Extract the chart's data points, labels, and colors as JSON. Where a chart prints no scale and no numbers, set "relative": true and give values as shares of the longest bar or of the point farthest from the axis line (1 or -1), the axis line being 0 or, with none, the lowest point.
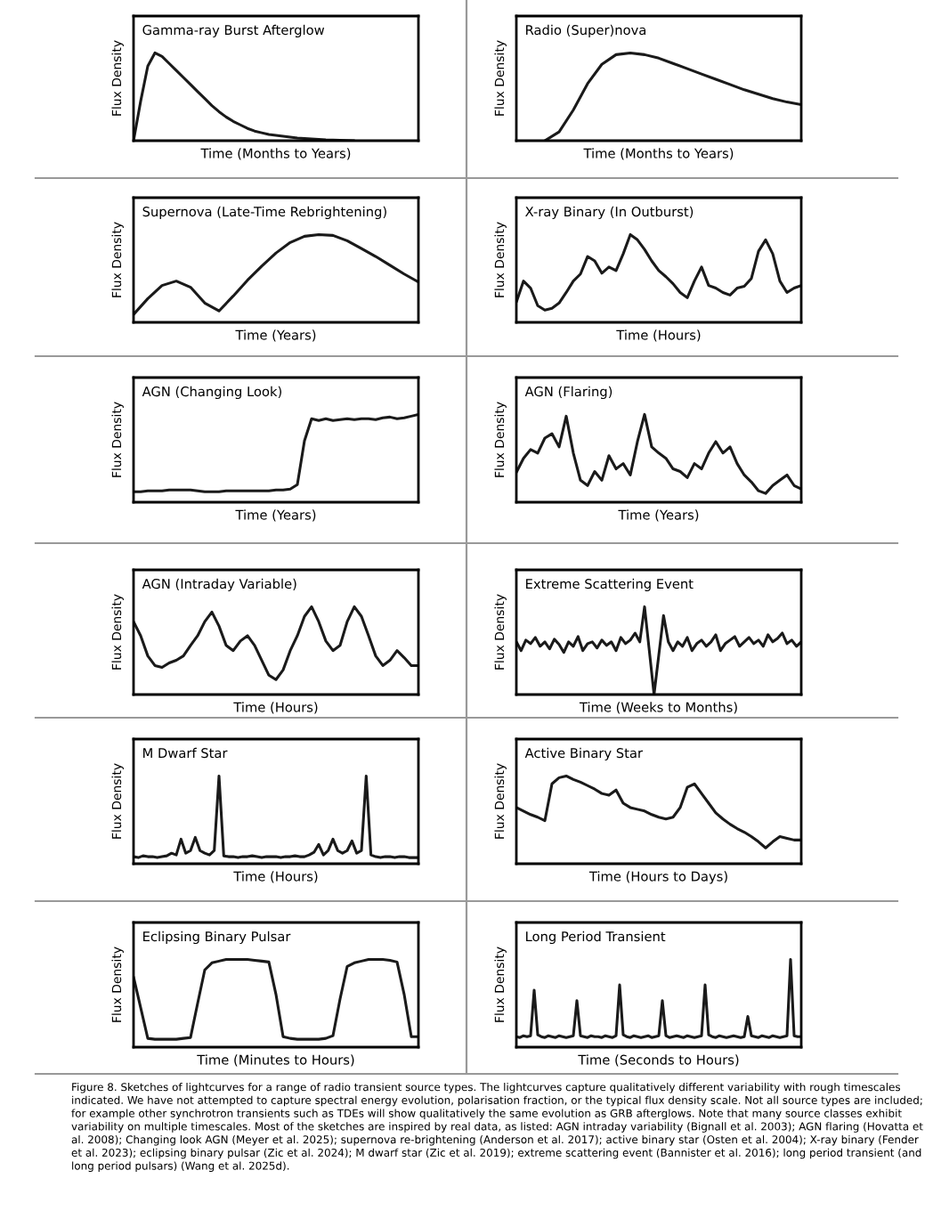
{
  "chart_data": [
    {
      "type": "line",
      "title": "Gamma-ray Burst Afterglow",
      "xlabel": "Time (Months to Years)",
      "ylabel": "Flux Density",
      "relative": true,
      "color": "#1a1a1a",
      "categories": [
        null,
        null,
        null,
        null,
        null,
        null,
        null,
        null,
        null,
        null,
        null,
        null,
        null,
        null,
        null,
        null,
        null,
        null,
        null,
        null,
        null,
        null,
        null,
        null,
        null,
        null,
        null,
        null,
        null,
        null,
        null,
        null,
        null,
        null,
        null,
        null,
        null,
        null,
        null,
        null,
        null
      ],
      "values": [
        0,
        0.45,
        0.85,
        1.0,
        0.96,
        0.88,
        0.8,
        0.72,
        0.64,
        0.56,
        0.48,
        0.4,
        0.33,
        0.27,
        0.22,
        0.18,
        0.14,
        0.11,
        0.09,
        0.07,
        0.06,
        0.05,
        0.04,
        0.03,
        0.025,
        0.02,
        0.015,
        0.01,
        0.007,
        0.004,
        0.002,
        0,
        null,
        null,
        null,
        null,
        null,
        null,
        null,
        null,
        null
      ]
    },
    {
      "type": "line",
      "title": "Radio (Super)nova",
      "xlabel": "Time (Months to Years)",
      "ylabel": "Flux Density",
      "relative": true,
      "color": "#1a1a1a",
      "categories": [
        null,
        null,
        null,
        null,
        null,
        null,
        null,
        null,
        null,
        null,
        null,
        null,
        null,
        null,
        null,
        null,
        null,
        null,
        null,
        null,
        null
      ],
      "values": [
        null,
        null,
        0,
        0.1,
        0.35,
        0.65,
        0.87,
        0.98,
        1.0,
        0.98,
        0.94,
        0.88,
        0.82,
        0.76,
        0.7,
        0.64,
        0.58,
        0.53,
        0.48,
        0.44,
        0.41
      ]
    },
    {
      "type": "line",
      "title": "Supernova (Late-Time Rebrightening)",
      "xlabel": "Time (Years)",
      "ylabel": "Flux Density",
      "relative": true,
      "color": "#1a1a1a",
      "categories": [
        null,
        null,
        null,
        null,
        null,
        null,
        null,
        null,
        null,
        null,
        null,
        null,
        null,
        null,
        null,
        null,
        null,
        null,
        null,
        null,
        null
      ],
      "values": [
        0.09,
        0.27,
        0.42,
        0.47,
        0.4,
        0.22,
        0.13,
        0.3,
        0.48,
        0.64,
        0.79,
        0.91,
        0.98,
        1.0,
        0.99,
        0.93,
        0.84,
        0.75,
        0.65,
        0.55,
        0.46
      ]
    },
    {
      "type": "line",
      "title": "X-ray Binary (In Outburst)",
      "xlabel": "Time (Hours)",
      "ylabel": "Flux Density",
      "relative": true,
      "color": "#1a1a1a",
      "categories": [
        null,
        null,
        null,
        null,
        null,
        null,
        null,
        null,
        null,
        null,
        null,
        null,
        null,
        null,
        null,
        null,
        null,
        null,
        null,
        null,
        null,
        null,
        null,
        null,
        null,
        null,
        null,
        null,
        null,
        null,
        null,
        null,
        null,
        null,
        null,
        null,
        null,
        null,
        null,
        null,
        null
      ],
      "values": [
        0.23,
        0.47,
        0.39,
        0.19,
        0.14,
        0.16,
        0.22,
        0.34,
        0.47,
        0.55,
        0.75,
        0.7,
        0.56,
        0.63,
        0.59,
        0.78,
        1.0,
        0.94,
        0.83,
        0.7,
        0.59,
        0.52,
        0.44,
        0.34,
        0.28,
        0.47,
        0.63,
        0.42,
        0.39,
        0.34,
        0.31,
        0.39,
        0.41,
        0.5,
        0.81,
        0.94,
        0.78,
        0.47,
        0.34,
        0.39,
        0.42
      ]
    },
    {
      "type": "line",
      "title": "AGN (Changing Look)",
      "xlabel": "Time (Years)",
      "ylabel": "Flux Density",
      "relative": true,
      "color": "#1a1a1a",
      "categories": [
        null,
        null,
        null,
        null,
        null,
        null,
        null,
        null,
        null,
        null,
        null,
        null,
        null,
        null,
        null,
        null,
        null,
        null,
        null,
        null,
        null,
        null,
        null,
        null,
        null,
        null,
        null,
        null,
        null,
        null,
        null,
        null,
        null,
        null,
        null,
        null,
        null,
        null,
        null,
        null,
        null
      ],
      "values": [
        0.12,
        0.12,
        0.13,
        0.13,
        0.13,
        0.14,
        0.14,
        0.14,
        0.14,
        0.13,
        0.12,
        0.12,
        0.12,
        0.13,
        0.13,
        0.13,
        0.13,
        0.13,
        0.13,
        0.13,
        0.14,
        0.14,
        0.15,
        0.2,
        0.7,
        0.95,
        0.93,
        0.95,
        0.93,
        0.94,
        0.95,
        0.94,
        0.95,
        0.95,
        0.94,
        0.96,
        0.97,
        0.95,
        0.96,
        0.98,
        1.0
      ]
    },
    {
      "type": "line",
      "title": "AGN (Flaring)",
      "xlabel": "Time (Years)",
      "ylabel": "Flux Density",
      "relative": true,
      "color": "#1a1a1a",
      "categories": [
        null,
        null,
        null,
        null,
        null,
        null,
        null,
        null,
        null,
        null,
        null,
        null,
        null,
        null,
        null,
        null,
        null,
        null,
        null,
        null,
        null,
        null,
        null,
        null,
        null,
        null,
        null,
        null,
        null,
        null,
        null,
        null,
        null,
        null,
        null,
        null,
        null,
        null,
        null,
        null,
        null
      ],
      "values": [
        0.34,
        0.5,
        0.6,
        0.56,
        0.73,
        0.78,
        0.63,
        0.98,
        0.56,
        0.25,
        0.19,
        0.35,
        0.25,
        0.53,
        0.38,
        0.44,
        0.31,
        0.69,
        1.0,
        0.63,
        0.56,
        0.5,
        0.38,
        0.35,
        0.28,
        0.44,
        0.38,
        0.56,
        0.69,
        0.56,
        0.63,
        0.44,
        0.31,
        0.23,
        0.13,
        0.1,
        0.19,
        0.25,
        0.31,
        0.19,
        0.15
      ]
    },
    {
      "type": "line",
      "title": "AGN (Intraday Variable)",
      "xlabel": "Time (Hours)",
      "ylabel": "Flux Density",
      "relative": true,
      "color": "#1a1a1a",
      "categories": [
        null,
        null,
        null,
        null,
        null,
        null,
        null,
        null,
        null,
        null,
        null,
        null,
        null,
        null,
        null,
        null,
        null,
        null,
        null,
        null,
        null,
        null,
        null,
        null,
        null,
        null,
        null,
        null,
        null,
        null,
        null,
        null,
        null,
        null,
        null,
        null,
        null,
        null,
        null,
        null,
        null
      ],
      "values": [
        0.83,
        0.67,
        0.44,
        0.33,
        0.31,
        0.36,
        0.39,
        0.44,
        0.56,
        0.67,
        0.83,
        0.94,
        0.78,
        0.56,
        0.5,
        0.61,
        0.67,
        0.56,
        0.39,
        0.22,
        0.17,
        0.28,
        0.5,
        0.67,
        0.89,
        1.0,
        0.83,
        0.61,
        0.5,
        0.56,
        0.83,
        1.0,
        0.89,
        0.67,
        0.44,
        0.33,
        0.39,
        0.5,
        0.42,
        0.33,
        0.33
      ]
    },
    {
      "type": "line",
      "title": "Extreme Scattering Event",
      "xlabel": "Time (Weeks to Months)",
      "ylabel": "Flux Density",
      "relative": true,
      "color": "#1a1a1a",
      "categories": [
        null,
        null,
        null,
        null,
        null,
        null,
        null,
        null,
        null,
        null,
        null,
        null,
        null,
        null,
        null,
        null,
        null,
        null,
        null,
        null,
        null,
        null,
        null,
        null,
        null,
        null,
        null,
        null,
        null,
        null,
        null,
        null,
        null,
        null,
        null,
        null,
        null,
        null,
        null,
        null,
        null,
        null,
        null,
        null,
        null,
        null,
        null,
        null,
        null,
        null,
        null,
        null,
        null,
        null,
        null,
        null,
        null,
        null,
        null,
        null,
        null
      ],
      "values": [
        0.6,
        0.5,
        0.62,
        0.58,
        0.65,
        0.55,
        0.6,
        0.52,
        0.63,
        0.57,
        0.48,
        0.6,
        0.55,
        0.66,
        0.5,
        0.58,
        0.6,
        0.53,
        0.62,
        0.56,
        0.6,
        0.5,
        0.65,
        0.58,
        0.62,
        0.7,
        0.6,
        1.0,
        0.5,
        0,
        0.45,
        0.9,
        0.6,
        0.5,
        0.6,
        0.55,
        0.65,
        0.5,
        0.58,
        0.62,
        0.55,
        0.6,
        0.68,
        0.5,
        0.58,
        0.62,
        0.66,
        0.55,
        0.6,
        0.65,
        0.58,
        0.62,
        0.55,
        0.68,
        0.6,
        0.64,
        0.7,
        0.58,
        0.62,
        0.55,
        0.6
      ]
    },
    {
      "type": "line",
      "title": "M Dwarf Star",
      "xlabel": "Time (Hours)",
      "ylabel": "Flux Density",
      "relative": true,
      "color": "#1a1a1a",
      "categories": [
        null,
        null,
        null,
        null,
        null,
        null,
        null,
        null,
        null,
        null,
        null,
        null,
        null,
        null,
        null,
        null,
        null,
        null,
        null,
        null,
        null,
        null,
        null,
        null,
        null,
        null,
        null,
        null,
        null,
        null,
        null,
        null,
        null,
        null,
        null,
        null,
        null,
        null,
        null,
        null,
        null,
        null,
        null,
        null,
        null,
        null,
        null,
        null,
        null,
        null,
        null,
        null,
        null,
        null,
        null,
        null,
        null,
        null,
        null,
        null,
        null
      ],
      "values": [
        0.08,
        0.07,
        0.09,
        0.08,
        0.08,
        0.07,
        0.08,
        0.09,
        0.12,
        0.1,
        0.28,
        0.12,
        0.15,
        0.3,
        0.15,
        0.12,
        0.1,
        0.15,
        1.0,
        0.09,
        0.08,
        0.08,
        0.07,
        0.08,
        0.08,
        0.09,
        0.08,
        0.07,
        0.08,
        0.08,
        0.08,
        0.07,
        0.08,
        0.08,
        0.09,
        0.08,
        0.08,
        0.1,
        0.13,
        0.22,
        0.1,
        0.15,
        0.28,
        0.15,
        0.12,
        0.15,
        0.26,
        0.12,
        0.15,
        1.0,
        0.1,
        0.08,
        0.07,
        0.08,
        0.08,
        0.07,
        0.08,
        0.08,
        0.07,
        0.07,
        0.07
      ]
    },
    {
      "type": "line",
      "title": "Active Binary Star",
      "xlabel": "Time (Hours to Days)",
      "ylabel": "Flux Density",
      "relative": true,
      "color": "#1a1a1a",
      "categories": [
        null,
        null,
        null,
        null,
        null,
        null,
        null,
        null,
        null,
        null,
        null,
        null,
        null,
        null,
        null,
        null,
        null,
        null,
        null,
        null,
        null,
        null,
        null,
        null,
        null,
        null,
        null,
        null,
        null,
        null,
        null,
        null,
        null,
        null,
        null,
        null,
        null,
        null,
        null,
        null,
        null
      ],
      "values": [
        0.64,
        0.6,
        0.56,
        0.53,
        0.49,
        0.91,
        0.98,
        1.0,
        0.96,
        0.93,
        0.89,
        0.85,
        0.8,
        0.78,
        0.84,
        0.69,
        0.64,
        0.62,
        0.6,
        0.56,
        0.53,
        0.51,
        0.53,
        0.64,
        0.87,
        0.91,
        0.8,
        0.69,
        0.58,
        0.51,
        0.45,
        0.4,
        0.36,
        0.31,
        0.25,
        0.18,
        0.25,
        0.31,
        0.29,
        0.27,
        0.27
      ]
    },
    {
      "type": "line",
      "title": "Eclipsing Binary Pulsar",
      "xlabel": "Time (Minutes to Hours)",
      "ylabel": "Flux Density",
      "relative": true,
      "color": "#1a1a1a",
      "categories": [
        null,
        null,
        null,
        null,
        null,
        null,
        null,
        null,
        null,
        null,
        null,
        null,
        null,
        null,
        null,
        null,
        null,
        null,
        null,
        null,
        null,
        null,
        null,
        null,
        null,
        null,
        null,
        null,
        null,
        null,
        null,
        null,
        null,
        null,
        null,
        null,
        null,
        null,
        null,
        null,
        null
      ],
      "values": [
        0.8,
        0.45,
        0.1,
        0.09,
        0.09,
        0.09,
        0.09,
        0.1,
        0.11,
        0.5,
        0.88,
        0.96,
        0.98,
        1.0,
        1.0,
        1.0,
        1.0,
        0.99,
        0.98,
        0.97,
        0.6,
        0.12,
        0.1,
        0.09,
        0.09,
        0.09,
        0.09,
        0.1,
        0.13,
        0.55,
        0.92,
        0.96,
        0.98,
        1.0,
        1.0,
        1.0,
        0.99,
        0.97,
        0.6,
        0.12,
        0.12
      ]
    },
    {
      "type": "line",
      "title": "Long Period Transient",
      "xlabel": "Time (Seconds to Hours)",
      "ylabel": "Flux Density",
      "relative": true,
      "color": "#1a1a1a",
      "categories": [
        null,
        null,
        null,
        null,
        null,
        null,
        null,
        null,
        null,
        null,
        null,
        null,
        null,
        null,
        null,
        null,
        null,
        null,
        null,
        null,
        null,
        null,
        null,
        null,
        null,
        null,
        null,
        null,
        null,
        null,
        null,
        null,
        null,
        null,
        null,
        null,
        null,
        null,
        null,
        null,
        null,
        null,
        null,
        null,
        null,
        null,
        null,
        null,
        null,
        null,
        null,
        null,
        null,
        null,
        null,
        null,
        null,
        null,
        null,
        null,
        null,
        null,
        null,
        null,
        null,
        null,
        null,
        null,
        null,
        null,
        null,
        null,
        null,
        null,
        null,
        null,
        null,
        null,
        null,
        null,
        null
      ],
      "values": [
        0.12,
        0.11,
        0.13,
        0.12,
        0.13,
        0.65,
        0.14,
        0.12,
        0.11,
        0.13,
        0.12,
        0.11,
        0.13,
        0.12,
        0.11,
        0.12,
        0.13,
        0.53,
        0.13,
        0.12,
        0.11,
        0.13,
        0.12,
        0.12,
        0.11,
        0.13,
        0.12,
        0.11,
        0.13,
        0.71,
        0.14,
        0.12,
        0.11,
        0.13,
        0.12,
        0.11,
        0.12,
        0.13,
        0.11,
        0.12,
        0.13,
        0.53,
        0.13,
        0.11,
        0.12,
        0.13,
        0.12,
        0.11,
        0.13,
        0.12,
        0.11,
        0.12,
        0.13,
        0.71,
        0.14,
        0.12,
        0.11,
        0.13,
        0.12,
        0.11,
        0.12,
        0.13,
        0.12,
        0.11,
        0.12,
        0.35,
        0.13,
        0.12,
        0.11,
        0.13,
        0.12,
        0.11,
        0.13,
        0.12,
        0.11,
        0.12,
        0.13,
        1.0,
        0.13,
        0.12,
        0.12
      ]
    },
    {
      "type": "other",
      "annotations": [
        "Figure 8. Sketches of lightcurves for a range of radio transient source types. The lightcurves capture qualitatively different variability with rough timescales indicated. We have not attempted to capture spectral energy evolution, polarisation fraction, or the typical flux density scale. Not all source types are included; for example other synchrotron transients such as TDEs will show qualitatively the same evolution as GRB afterglows. Note that many source classes exhibit variability on multiple timescales. Most of the sketches are inspired by real data, as listed: AGN intraday variability (Bignall et al. 2003); AGN flaring (Hovatta et al. 2008); Changing look AGN (Meyer et al. 2025); supernova re-brightening (Anderson et al. 2017); active binary star (Osten et al. 2004); X-ray binary (Fender et al. 2023); eclipsing binary pulsar (Zic et al. 2024); M dwarf star (Zic et al. 2019); extreme scattering event (Bannister et al. 2016); long period transient (and long period pulsars) (Wang et al. 2025d)."
      ]
    }
  ]
}
